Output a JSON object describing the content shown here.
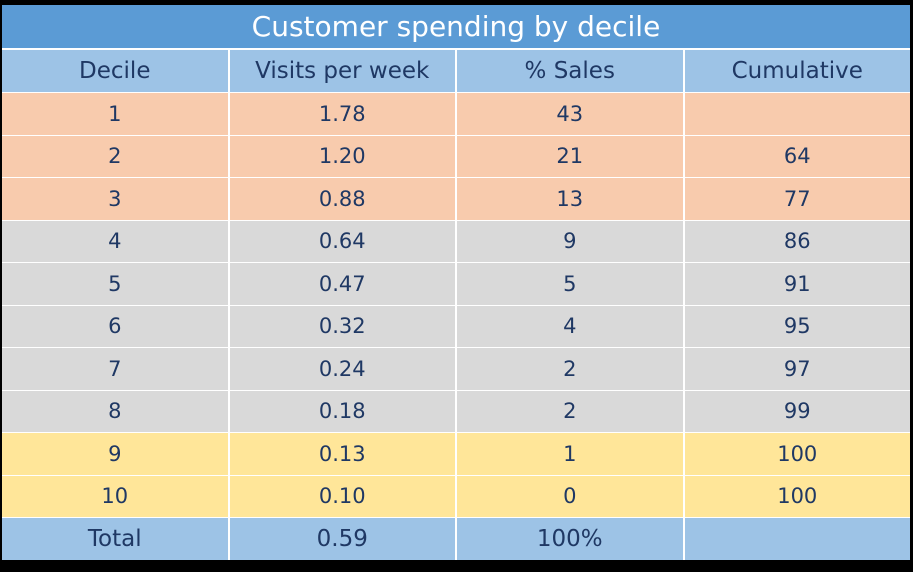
{
  "chart_data": {
    "type": "table",
    "title": "Customer spending by decile",
    "columns": [
      "Decile",
      "Visits per week",
      "% Sales",
      "Cumulative"
    ],
    "rows": [
      {
        "decile": "1",
        "visits": "1.78",
        "sales": "43",
        "cumulative": "",
        "band": "top"
      },
      {
        "decile": "2",
        "visits": "1.20",
        "sales": "21",
        "cumulative": "64",
        "band": "top"
      },
      {
        "decile": "3",
        "visits": "0.88",
        "sales": "13",
        "cumulative": "77",
        "band": "top"
      },
      {
        "decile": "4",
        "visits": "0.64",
        "sales": "9",
        "cumulative": "86",
        "band": "mid"
      },
      {
        "decile": "5",
        "visits": "0.47",
        "sales": "5",
        "cumulative": "91",
        "band": "mid"
      },
      {
        "decile": "6",
        "visits": "0.32",
        "sales": "4",
        "cumulative": "95",
        "band": "mid"
      },
      {
        "decile": "7",
        "visits": "0.24",
        "sales": "2",
        "cumulative": "97",
        "band": "mid"
      },
      {
        "decile": "8",
        "visits": "0.18",
        "sales": "2",
        "cumulative": "99",
        "band": "mid"
      },
      {
        "decile": "9",
        "visits": "0.13",
        "sales": "1",
        "cumulative": "100",
        "band": "low"
      },
      {
        "decile": "10",
        "visits": "0.10",
        "sales": "0",
        "cumulative": "100",
        "band": "low"
      }
    ],
    "total": {
      "label": "Total",
      "visits": "0.59",
      "sales": "100%",
      "cumulative": ""
    },
    "colors": {
      "title": "#5b9bd5",
      "header": "#9dc3e6",
      "top": "#f8cbad",
      "mid": "#d9d9d9",
      "low": "#ffe699",
      "text": "#1f3864"
    }
  }
}
